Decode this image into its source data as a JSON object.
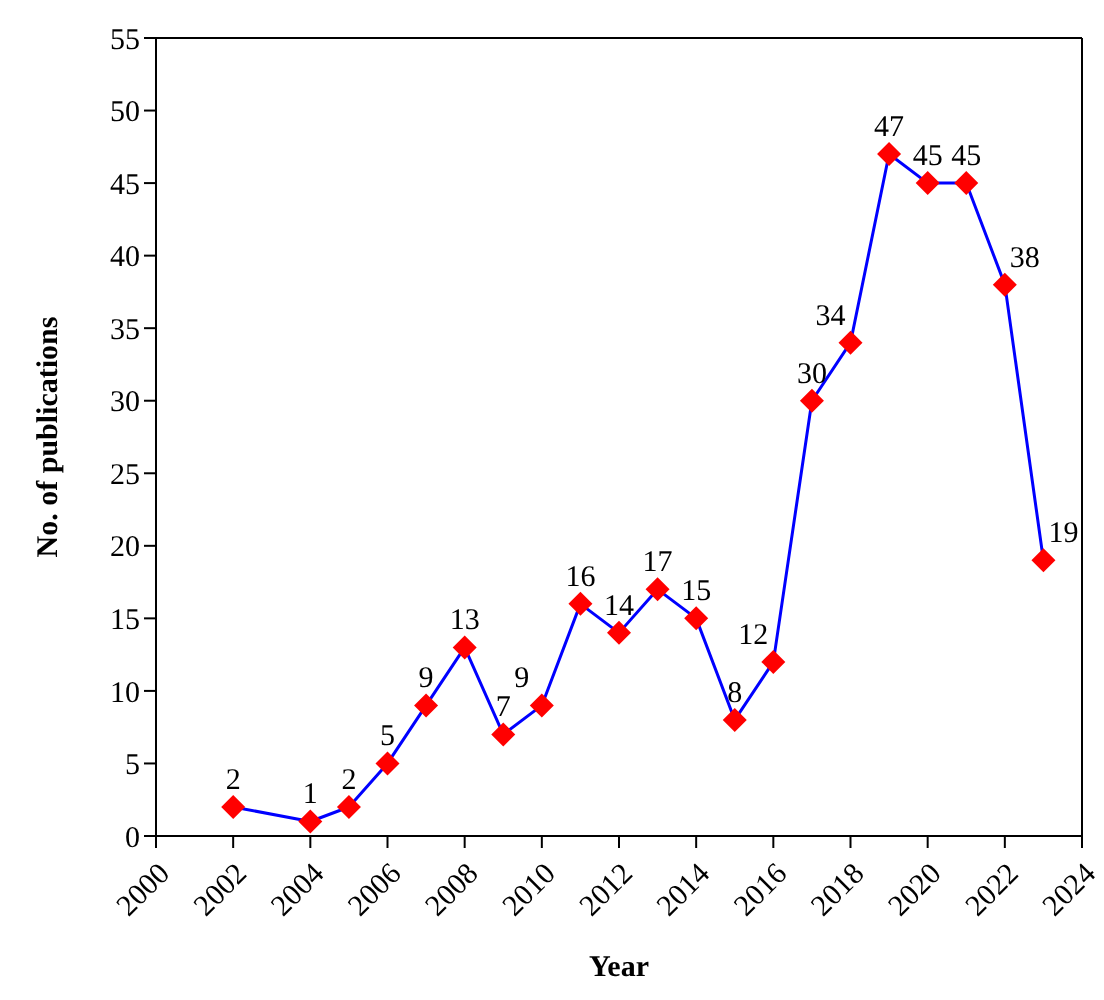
{
  "chart_data": {
    "type": "line",
    "xlabel": "Year",
    "ylabel": "No. of publications",
    "x": [
      2002,
      2004,
      2005,
      2006,
      2007,
      2008,
      2009,
      2010,
      2011,
      2012,
      2013,
      2014,
      2015,
      2016,
      2017,
      2018,
      2019,
      2020,
      2021,
      2022,
      2023
    ],
    "series": [
      {
        "color": "#0000ff",
        "colors": [
          "#ff0000",
          "#ff0000",
          "#ff0000",
          "#ff0000",
          "#ff0000",
          "#ff0000",
          "#ff0000",
          "#ff0000",
          "#ff0000",
          "#ff0000",
          "#ff0000",
          "#ff0000",
          "#ff0000",
          "#ff0000",
          "#ff0000",
          "#ff0000",
          "#ff0000",
          "#ff0000",
          "#ff0000",
          "#ff0000",
          "#ff0000"
        ],
        "values": [
          2,
          1,
          2,
          5,
          9,
          13,
          7,
          9,
          16,
          14,
          17,
          15,
          8,
          12,
          30,
          34,
          47,
          45,
          45,
          38,
          19
        ]
      }
    ],
    "xlim": [
      2000,
      2024
    ],
    "xticks": [
      2000,
      2002,
      2004,
      2006,
      2008,
      2010,
      2012,
      2014,
      2016,
      2018,
      2020,
      2022,
      2024
    ],
    "ylim": [
      0,
      55
    ],
    "yticks": [
      0,
      5,
      10,
      15,
      20,
      25,
      30,
      35,
      40,
      45,
      50,
      55
    ],
    "grid": false,
    "legend": false,
    "marker": "diamond",
    "line_style": "solid",
    "data_labels": true
  }
}
